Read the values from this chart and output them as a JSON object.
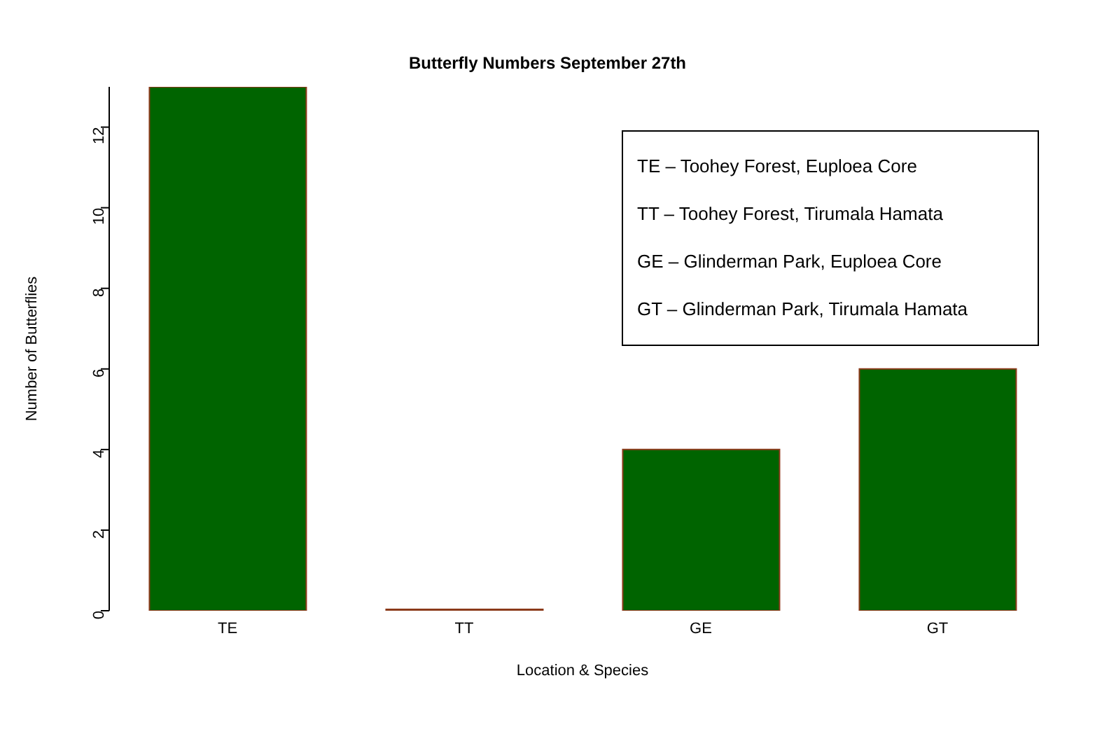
{
  "chart_data": {
    "type": "bar",
    "title": "Butterfly Numbers September 27th",
    "xlabel": "Location & Species",
    "ylabel": "Number of Butterflies",
    "categories": [
      "TE",
      "TT",
      "GE",
      "GT"
    ],
    "values": [
      13,
      0,
      4,
      6
    ],
    "color": "#006400",
    "ylim": [
      0,
      13
    ],
    "yticks": [
      0,
      2,
      4,
      6,
      8,
      10,
      12
    ],
    "grid": false,
    "annotations": [
      "TE – Toohey Forest, Euploea Core",
      "TT – Toohey Forest, Tirumala Hamata",
      "GE – Glinderman Park, Euploea Core",
      "GT – Glinderman Park, Tirumala Hamata"
    ]
  }
}
